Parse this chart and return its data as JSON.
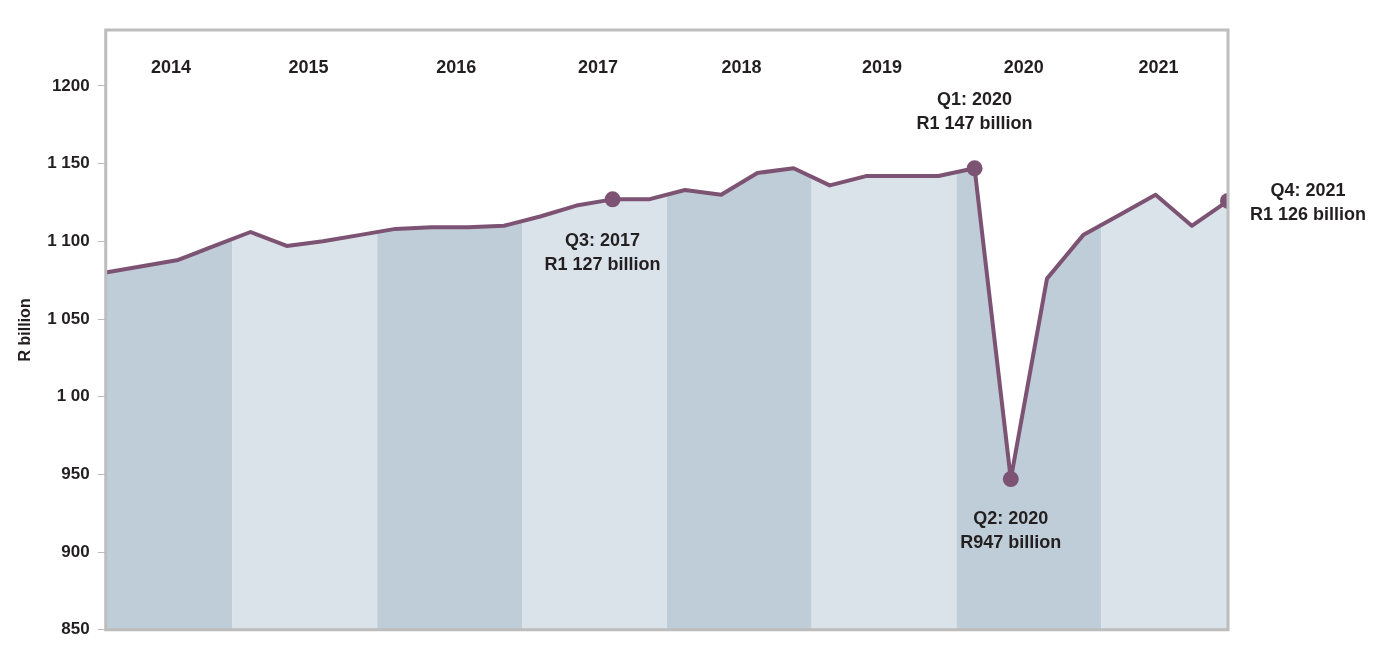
{
  "chart_data": {
    "type": "line",
    "ylabel": "R billion",
    "x": [
      2014,
      2014.25,
      2014.5,
      2014.75,
      2015,
      2015.25,
      2015.5,
      2015.75,
      2016,
      2016.25,
      2016.5,
      2016.75,
      2017,
      2017.25,
      2017.5,
      2017.75,
      2018,
      2018.25,
      2018.5,
      2018.75,
      2019,
      2019.25,
      2019.5,
      2019.75,
      2020,
      2020.25,
      2020.5,
      2020.75,
      2021,
      2021.25,
      2021.5,
      2021.75
    ],
    "series": [
      {
        "color": "#7d5374",
        "values": [
          1080,
          1084,
          1088,
          1097,
          1106,
          1097,
          1100,
          1104,
          1108,
          1109,
          1109,
          1110,
          1116,
          1123,
          1127,
          1127,
          1133,
          1130,
          1144,
          1147,
          1136,
          1142,
          1142,
          1142,
          1147,
          947,
          1076,
          1104,
          1117,
          1130,
          1110,
          1126
        ]
      }
    ],
    "bands": [
      {
        "axis": "x",
        "from": 2014,
        "to": 2014.875,
        "color": "#bfcdd8"
      },
      {
        "axis": "x",
        "from": 2014.875,
        "to": 2015.875,
        "color": "#dae2ea"
      },
      {
        "axis": "x",
        "from": 2015.875,
        "to": 2016.875,
        "color": "#bfcdd8"
      },
      {
        "axis": "x",
        "from": 2016.875,
        "to": 2017.875,
        "color": "#dae2ea"
      },
      {
        "axis": "x",
        "from": 2017.875,
        "to": 2018.875,
        "color": "#bfcdd8"
      },
      {
        "axis": "x",
        "from": 2018.875,
        "to": 2019.875,
        "color": "#dae2ea"
      },
      {
        "axis": "x",
        "from": 2019.875,
        "to": 2020.875,
        "color": "#bfcdd8"
      },
      {
        "axis": "x",
        "from": 2020.875,
        "to": 2021.75,
        "color": "#dae2ea"
      }
    ],
    "xlim": [
      2014,
      2021.75
    ],
    "xticks": [
      {
        "value": 2014.45,
        "label": "2014"
      },
      {
        "value": 2015.4,
        "label": "2015"
      },
      {
        "value": 2016.42,
        "label": "2016"
      },
      {
        "value": 2017.4,
        "label": "2017"
      },
      {
        "value": 2018.39,
        "label": "2018"
      },
      {
        "value": 2019.36,
        "label": "2019"
      },
      {
        "value": 2020.34,
        "label": "2020"
      },
      {
        "value": 2021.27,
        "label": "2021"
      }
    ],
    "ylim": [
      850,
      1236
    ],
    "yticks": [
      850,
      900,
      950,
      {
        "value": 1000,
        "label": "1 00"
      },
      {
        "value": 1050,
        "label": "1 050"
      },
      {
        "value": 1100,
        "label": "1 100"
      },
      {
        "value": 1150,
        "label": "1 150"
      },
      1200
    ],
    "grid": false,
    "annotations": [
      {
        "text": "Q3: 2017\nR1 127 billion",
        "x": 2017.5,
        "y": 1127
      },
      {
        "text": "Q1: 2020\nR1 147 billion",
        "x": 2020,
        "y": 1147
      },
      {
        "text": "Q2: 2020\nR947 billion",
        "x": 2020.25,
        "y": 947
      },
      {
        "text": "Q4: 2021\nR1 126 billion",
        "x": 2021.75,
        "y": 1126
      }
    ]
  }
}
